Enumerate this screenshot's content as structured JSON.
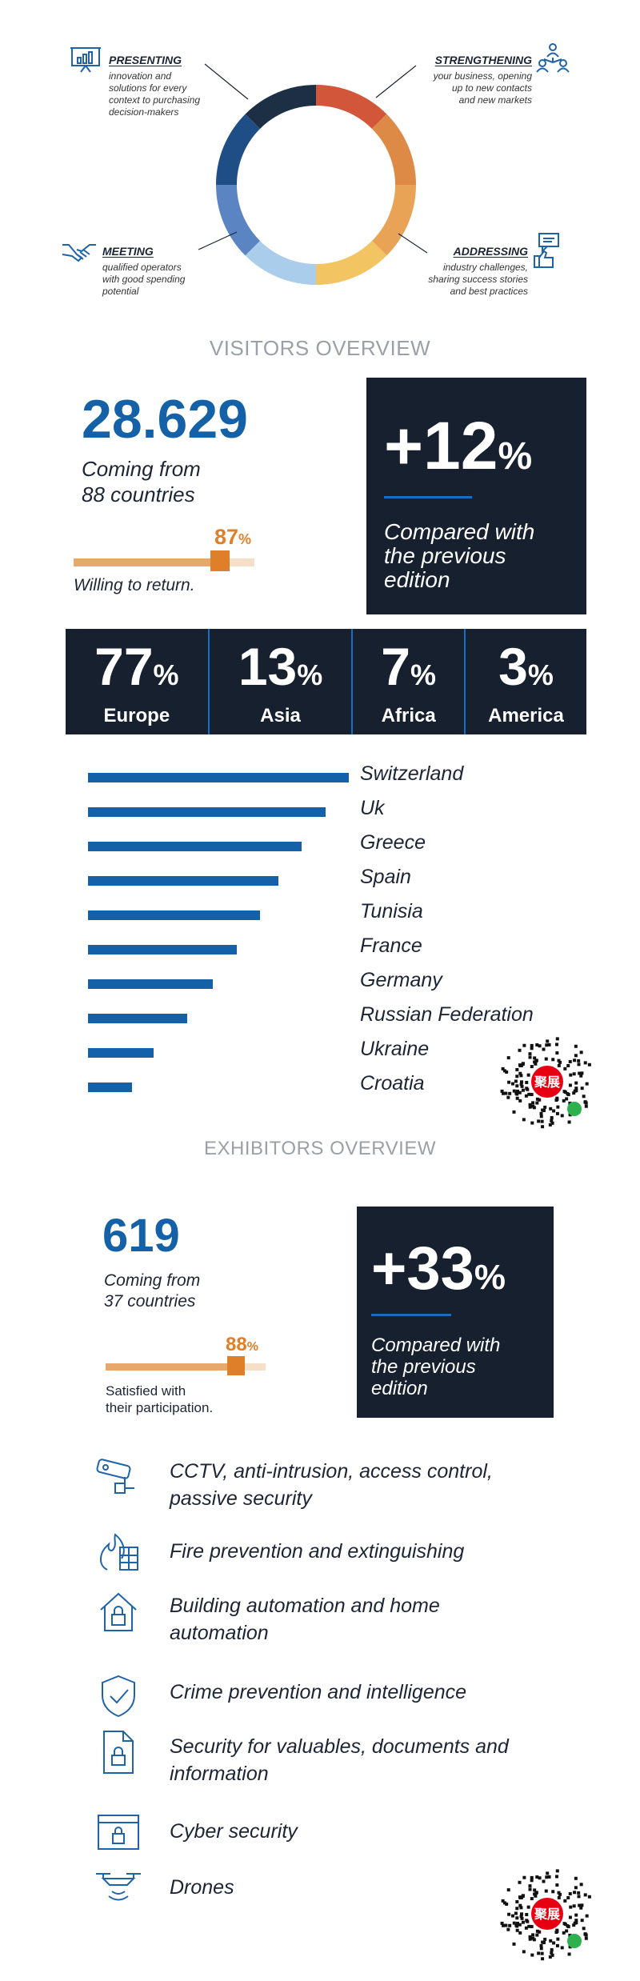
{
  "ring": {
    "presenting": {
      "title": "PRESENTING",
      "desc": [
        "innovation and",
        "solutions for every",
        "context to purchasing",
        "decision-makers"
      ]
    },
    "strengthening": {
      "title": "STRENGTHENING",
      "desc": [
        "your business, opening",
        "up to new contacts",
        "and new markets"
      ]
    },
    "meeting": {
      "title": "MEETING",
      "desc": [
        "qualified operators",
        "with good spending",
        "potential"
      ]
    },
    "addressing": {
      "title": "ADDRESSING",
      "desc": [
        "industry challenges,",
        "sharing success stories",
        "and best practices"
      ]
    },
    "segment_colors": [
      "#d2573a",
      "#dd8a47",
      "#e9a357",
      "#f2c462",
      "#a9cdea",
      "#5b84c2",
      "#1f4e86",
      "#1c2f44"
    ]
  },
  "visitors": {
    "section_title": "VISITORS OVERVIEW",
    "count": "28.629",
    "coming_from_1": "Coming from",
    "coming_from_2": "88 countries",
    "willing_pct": "87",
    "pct_sign": "%",
    "willing_value": 0.87,
    "willing_label": "Willing to return.",
    "growth": "+12",
    "compared_1": "Compared with",
    "compared_2": "the previous",
    "compared_3": "edition",
    "regions": [
      {
        "pct": "77",
        "name": "Europe"
      },
      {
        "pct": "13",
        "name": "Asia"
      },
      {
        "pct": "7",
        "name": "Africa"
      },
      {
        "pct": "3",
        "name": "America"
      }
    ],
    "countries": [
      {
        "name": "Switzerland",
        "value": 100
      },
      {
        "name": "Uk",
        "value": 91
      },
      {
        "name": "Greece",
        "value": 82
      },
      {
        "name": "Spain",
        "value": 73
      },
      {
        "name": "Tunisia",
        "value": 66
      },
      {
        "name": "France",
        "value": 57
      },
      {
        "name": "Germany",
        "value": 48
      },
      {
        "name": "Russian Federation",
        "value": 38
      },
      {
        "name": "Ukraine",
        "value": 25
      },
      {
        "name": "Croatia",
        "value": 17
      }
    ]
  },
  "exhibitors": {
    "section_title": "EXHIBITORS OVERVIEW",
    "count": "619",
    "coming_from_1": "Coming from",
    "coming_from_2": "37 countries",
    "satisfied_pct": "88",
    "pct_sign": "%",
    "satisfied_value": 0.88,
    "satisfied_1": "Satisfied with",
    "satisfied_2": "their participation.",
    "growth": "+33",
    "compared_1": "Compared with",
    "compared_2": "the previous",
    "compared_3": "edition"
  },
  "categories": [
    {
      "line1": "CCTV, anti-intrusion, access control,",
      "line2": "passive security",
      "icon": "cctv-camera-icon"
    },
    {
      "line1": "Fire prevention and extinguishing",
      "line2": "",
      "icon": "fire-icon"
    },
    {
      "line1": "Building automation and home",
      "line2": "automation",
      "icon": "house-lock-icon"
    },
    {
      "line1": "Crime prevention and intelligence",
      "line2": "",
      "icon": "shield-check-icon"
    },
    {
      "line1": "Security for valuables, documents and",
      "line2": "information",
      "icon": "document-lock-icon"
    },
    {
      "line1": "Cyber security",
      "line2": "",
      "icon": "browser-lock-icon"
    },
    {
      "line1": "Drones",
      "line2": "",
      "icon": "drone-icon"
    }
  ],
  "qr_label": "聚展",
  "colors": {
    "navy": "#16202e",
    "blue": "#1461a8",
    "orange": "#e07f2a",
    "grey": "#9aa0a6"
  }
}
